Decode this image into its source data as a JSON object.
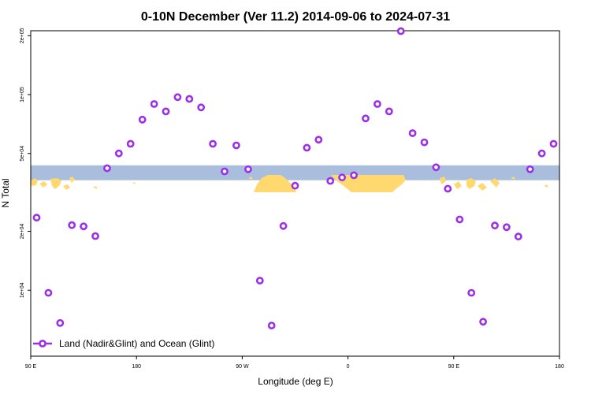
{
  "chart_data": {
    "type": "scatter",
    "title": "0-10N December (Ver 11.2)   2014-09-06 to 2024-07-31",
    "xlabel": "Longitude (deg E)",
    "ylabel": "N Total",
    "xlim": [
      90,
      540
    ],
    "ylim_log": [
      4600,
      212000
    ],
    "y_scale": "log",
    "x_ticks": [
      {
        "value": 90,
        "label": "90 E"
      },
      {
        "value": 180,
        "label": "180"
      },
      {
        "value": 270,
        "label": "90 W"
      },
      {
        "value": 360,
        "label": "0"
      },
      {
        "value": 450,
        "label": "90 E"
      },
      {
        "value": 540,
        "label": "180"
      }
    ],
    "y_ticks": [
      {
        "value": 10000,
        "label": "1e+04"
      },
      {
        "value": 20000,
        "label": "2e+04"
      },
      {
        "value": 50000,
        "label": "5e+04"
      },
      {
        "value": 100000,
        "label": "1e+05"
      },
      {
        "value": 200000,
        "label": "2e+05"
      }
    ],
    "legend": {
      "position": "bottom-left",
      "label": "Land (Nadir&Glint) and Ocean (Glint)"
    },
    "series": [
      {
        "name": "Land (Nadir&Glint) and Ocean (Glint)",
        "color": "#9b30e8",
        "x": [
          95,
          105,
          115,
          125,
          135,
          145,
          155,
          165,
          175,
          185,
          195,
          205,
          215,
          225,
          235,
          245,
          255,
          265,
          275,
          285,
          295,
          305,
          315,
          325,
          335,
          345,
          355,
          365,
          375,
          385,
          395,
          405,
          415,
          425,
          435,
          445,
          455,
          465,
          475,
          485,
          495,
          505,
          515,
          525,
          535
        ],
        "y": [
          23500,
          9700,
          6800,
          21500,
          21200,
          18900,
          42000,
          50000,
          56000,
          74500,
          89500,
          82000,
          97000,
          95000,
          86000,
          56000,
          40500,
          55000,
          41500,
          11200,
          6600,
          21300,
          34200,
          53500,
          58800,
          36200,
          37700,
          38700,
          75500,
          89500,
          82000,
          211000,
          63500,
          57000,
          42500,
          33000,
          23000,
          9700,
          6900,
          21400,
          21000,
          18800,
          41500,
          50000,
          56000
        ]
      }
    ],
    "background_band": {
      "y_range_log": [
        36500,
        43500
      ],
      "land_color": "#ffd970",
      "ocean_color": "#a8bedc"
    }
  }
}
